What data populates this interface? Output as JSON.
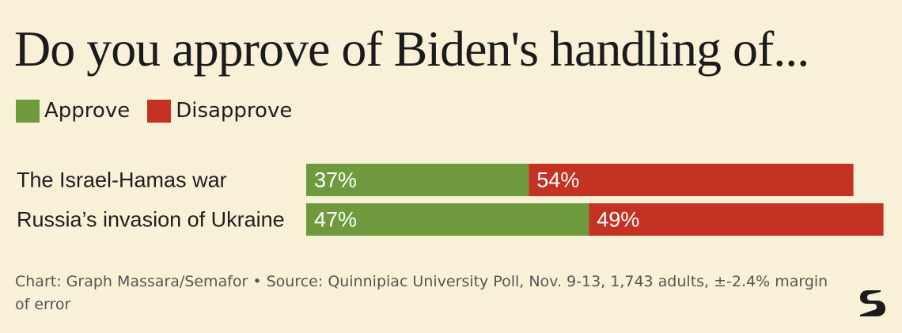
{
  "title": "Do you approve of Biden's handling of...",
  "footer": "Chart: Graph Massara/Semafor • Source: Quinnipiac University Poll, Nov. 9-13, 1,743 adults, ±-2.4% margin of error",
  "colors": {
    "approve": "#6e9a3d",
    "disapprove": "#c43223",
    "background": "#f8f1d8"
  },
  "logo": {
    "icon": "semafor-s-logo"
  },
  "chart_data": {
    "type": "bar",
    "orientation": "horizontal",
    "stacked": true,
    "title": "Do you approve of Biden's handling of...",
    "legend": "top-left",
    "categories": [
      "The Israel-Hamas war",
      "Russia’s invasion of Ukraine"
    ],
    "series": [
      {
        "name": "Approve",
        "values": [
          37,
          47
        ],
        "labels": [
          "37%",
          "47%"
        ],
        "color": "#6e9a3d"
      },
      {
        "name": "Disapprove",
        "values": [
          54,
          49
        ],
        "labels": [
          "54%",
          "49%"
        ],
        "color": "#c43223"
      }
    ],
    "xlim": [
      0,
      96
    ],
    "grid": false
  }
}
